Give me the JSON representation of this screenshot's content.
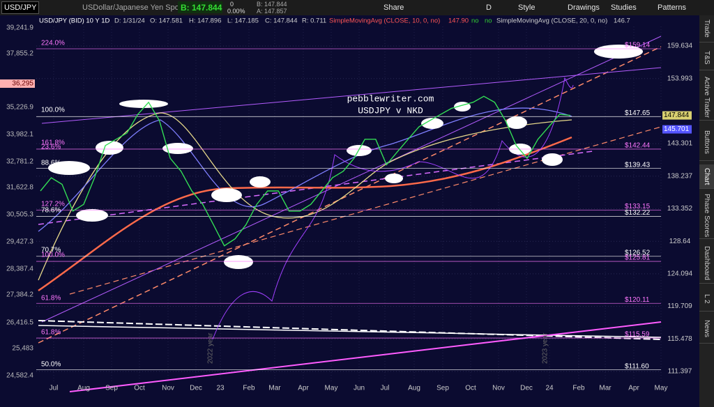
{
  "toolbar": {
    "symbol": "USD/JPY",
    "description": "USDollar/Japanese Yen Spot",
    "bid": "B: 147.844",
    "change": "0",
    "change_pct": "0.00%",
    "bid_small": "B: 147.844",
    "ask_small": "A: 147.857",
    "share": "Share",
    "aggregation": "D",
    "style": "Style",
    "drawings": "Drawings",
    "studies": "Studies",
    "patterns": "Patterns"
  },
  "header": {
    "instrument": "USD/JPY (BID) 10 Y 1D",
    "date": "D: 1/31/24",
    "open": "O: 147.581",
    "high": "H: 147.896",
    "low": "L: 147.185",
    "close": "C: 147.844",
    "range": "R: 0.711",
    "study1": "SimpleMovingAvg (CLOSE, 10, 0, no)",
    "study1_value": "147.90",
    "study1_flag1": "no",
    "study1_flag2": "no",
    "study2": "SimpleMovingAvg (CLOSE, 20, 0, no)",
    "study2_value": "146.7"
  },
  "annotations": {
    "site": "pebblewriter.com",
    "subtitle": "USDJPY v NKD",
    "year1": "2022 year",
    "year2": "2023 year"
  },
  "right_axis": {
    "ticks": [
      159.634,
      153.993,
      143.301,
      138.237,
      133.352,
      128.64,
      124.094,
      119.709,
      115.478,
      111.397
    ]
  },
  "left_axis": {
    "ticks": [
      "39,241.9",
      "37,855.2",
      "36,295",
      "35,226.9",
      "33,982.1",
      "32,781.2",
      "31,622.8",
      "30,505.3",
      "29,427.3",
      "28,387.4",
      "27,384.2",
      "26,416.5",
      "25,483",
      "24,582.4"
    ]
  },
  "x_axis": {
    "labels": [
      "Jul",
      "Aug",
      "Sep",
      "Oct",
      "Nov",
      "Dec",
      "23",
      "Feb",
      "Mar",
      "Apr",
      "May",
      "Jun",
      "Jul",
      "Aug",
      "Sep",
      "Oct",
      "Nov",
      "Dec",
      "24",
      "Feb",
      "Mar",
      "Apr",
      "May"
    ]
  },
  "levels": [
    {
      "value": 159.14,
      "label": "$159.14"
    },
    {
      "value": 147.65,
      "label": "$147.65"
    },
    {
      "value": 142.44,
      "label": "$142.44"
    },
    {
      "value": 139.43,
      "label": "$139.43"
    },
    {
      "value": 133.15,
      "label": "$133.15"
    },
    {
      "value": 132.22,
      "label": "$132.22"
    },
    {
      "value": 126.52,
      "label": "$126.52"
    },
    {
      "value": 125.81,
      "label": "$125.81"
    },
    {
      "value": 120.11,
      "label": "$120.11"
    },
    {
      "value": 115.59,
      "label": "$115.59"
    },
    {
      "value": 111.6,
      "label": "$111.60"
    }
  ],
  "fib_labels": [
    "224.0%",
    "100.0%",
    "161.8%",
    "23.6%",
    "88.6%",
    "127.2%",
    "78.6%",
    "70.7%",
    "100.0%",
    "61.8%",
    "61.8%",
    "50.0%"
  ],
  "badges": {
    "last": "147.844",
    "ma": "145.701"
  },
  "price": {
    "closes": [
      136,
      138,
      137,
      133,
      134,
      138,
      143,
      144,
      145,
      148,
      150,
      147,
      141,
      139,
      136,
      134,
      131,
      128,
      129,
      131,
      134,
      136,
      136,
      133,
      133,
      134,
      136,
      138,
      139,
      141,
      144,
      144,
      140,
      142,
      144,
      146,
      147,
      148,
      149,
      149.5,
      150,
      151,
      150,
      147,
      143,
      141,
      144,
      146,
      148,
      147.844
    ]
  },
  "sidebar": [
    "Trade",
    "T&S",
    "Active Trader",
    "Buttons",
    "Chart",
    "Phase Scores",
    "Dashboard",
    "L 2",
    "News"
  ]
}
